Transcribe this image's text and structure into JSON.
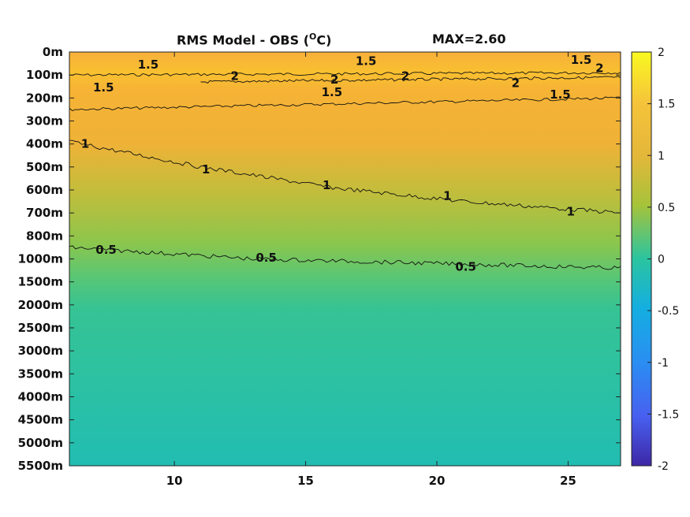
{
  "chart_data": {
    "type": "heatmap",
    "title": "RMS Model - OBS (°C)",
    "title_main": "RMS Model - OBS (",
    "title_sup": "O",
    "title_tail": "C)",
    "max_label": "MAX=2.60",
    "xlim": [
      6,
      27
    ],
    "x_ticks": [
      10,
      15,
      20,
      25
    ],
    "y_tick_labels": [
      "0m",
      "100m",
      "200m",
      "300m",
      "400m",
      "500m",
      "600m",
      "700m",
      "800m",
      "1000m",
      "1500m",
      "2000m",
      "2500m",
      "3000m",
      "3500m",
      "4000m",
      "4500m",
      "5000m",
      "5500m"
    ],
    "colorbar": {
      "ticks": [
        2,
        1.5,
        1,
        0.5,
        0,
        -0.5,
        -1,
        -1.5,
        -2
      ],
      "range": [
        -2,
        2
      ],
      "colors": [
        "#3e26a8",
        "#4a5cf3",
        "#2f95f0",
        "#12b6d6",
        "#22c3a4",
        "#7dcb52",
        "#d9bb34",
        "#f6a633",
        "#f9e620"
      ]
    },
    "contours": [
      {
        "level": 1.5,
        "points": [
          [
            6,
            1.0
          ],
          [
            27,
            0.9
          ]
        ]
      },
      {
        "level": 1.5,
        "points": [
          [
            6,
            2.5
          ],
          [
            27,
            2.0
          ]
        ]
      },
      {
        "level": 2,
        "points": [
          [
            11,
            1.3
          ],
          [
            27,
            1.1
          ]
        ]
      },
      {
        "level": 1,
        "points": [
          [
            6,
            3.9
          ],
          [
            11,
            5.0
          ],
          [
            16,
            5.9
          ],
          [
            21,
            6.5
          ],
          [
            27,
            7.0
          ]
        ]
      },
      {
        "level": 0.5,
        "points": [
          [
            6,
            8.5
          ],
          [
            13,
            9.0
          ],
          [
            27,
            9.4
          ]
        ]
      }
    ],
    "contour_labels": [
      {
        "text": "1.5",
        "x": 9.0,
        "y": 0.55
      },
      {
        "text": "1.5",
        "x": 17.3,
        "y": 0.4
      },
      {
        "text": "1.5",
        "x": 25.5,
        "y": 0.35
      },
      {
        "text": "2",
        "x": 12.3,
        "y": 1.05
      },
      {
        "text": "2",
        "x": 16.1,
        "y": 1.2
      },
      {
        "text": "2",
        "x": 18.8,
        "y": 1.05
      },
      {
        "text": "2",
        "x": 23.0,
        "y": 1.35
      },
      {
        "text": "2",
        "x": 26.2,
        "y": 0.7
      },
      {
        "text": "1.5",
        "x": 7.3,
        "y": 1.55
      },
      {
        "text": "1.5",
        "x": 16.0,
        "y": 1.75
      },
      {
        "text": "1.5",
        "x": 24.7,
        "y": 1.85
      },
      {
        "text": "1",
        "x": 6.6,
        "y": 4.0
      },
      {
        "text": "1",
        "x": 11.2,
        "y": 5.1
      },
      {
        "text": "1",
        "x": 15.8,
        "y": 5.8
      },
      {
        "text": "1",
        "x": 20.4,
        "y": 6.25
      },
      {
        "text": "1",
        "x": 25.1,
        "y": 6.95
      },
      {
        "text": "0.5",
        "x": 7.4,
        "y": 8.6
      },
      {
        "text": "0.5",
        "x": 13.5,
        "y": 8.95
      },
      {
        "text": "0.5",
        "x": 21.1,
        "y": 9.35
      }
    ]
  }
}
